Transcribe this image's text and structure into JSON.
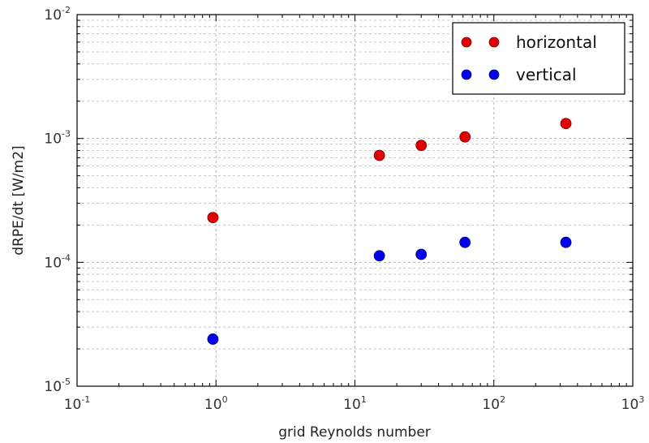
{
  "chart_data": {
    "type": "scatter",
    "title": "",
    "xlabel": "grid Reynolds number",
    "ylabel": "dRPE/dt [W/m2]",
    "xscale": "log",
    "yscale": "log",
    "xlim": [
      0.1,
      1000
    ],
    "ylim": [
      1e-05,
      0.01
    ],
    "grid": true,
    "legend_position": "top-right",
    "x_ticks": [
      {
        "base": "10",
        "exp": "-1"
      },
      {
        "base": "10",
        "exp": "0"
      },
      {
        "base": "10",
        "exp": "1"
      },
      {
        "base": "10",
        "exp": "2"
      },
      {
        "base": "10",
        "exp": "3"
      }
    ],
    "y_ticks": [
      {
        "base": "10",
        "exp": "-5"
      },
      {
        "base": "10",
        "exp": "-4"
      },
      {
        "base": "10",
        "exp": "-3"
      },
      {
        "base": "10",
        "exp": "-2"
      }
    ],
    "series": [
      {
        "name": "horizontal",
        "color": "#e00000",
        "x": [
          0.95,
          15,
          30,
          62,
          330
        ],
        "y": [
          0.00023,
          0.00073,
          0.00088,
          0.00103,
          0.00132
        ]
      },
      {
        "name": "vertical",
        "color": "#0000ee",
        "x": [
          0.95,
          15,
          30,
          62,
          330
        ],
        "y": [
          2.4e-05,
          0.000113,
          0.000116,
          0.000145,
          0.000145
        ]
      }
    ]
  }
}
